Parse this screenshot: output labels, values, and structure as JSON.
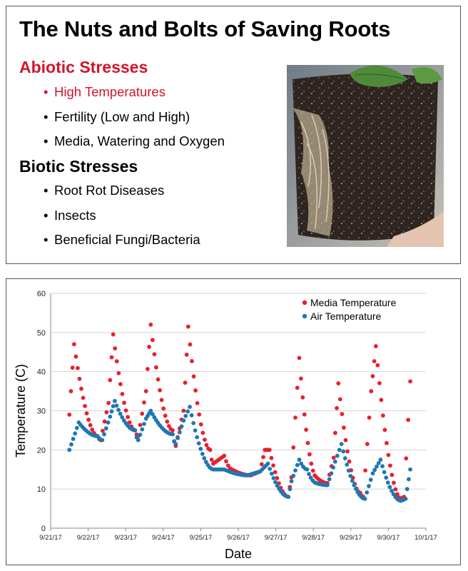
{
  "slide": {
    "title": "The Nuts and Bolts of Saving Roots",
    "abiotic_heading": "Abiotic Stresses",
    "abiotic_items": [
      "High Temperatures",
      "Fertility (Low and High)",
      "Media, Watering and Oxygen"
    ],
    "biotic_heading": "Biotic Stresses",
    "biotic_items": [
      "Root Rot Diseases",
      "Insects",
      "Beneficial Fungi/Bacteria"
    ],
    "photo": "root-ball-photo",
    "highlight_color": "#d2142c"
  },
  "chart_data": {
    "type": "scatter",
    "xlabel": "Date",
    "ylabel": "Temperature (C)",
    "ylim": [
      0,
      60
    ],
    "yticks": [
      0,
      10,
      20,
      30,
      40,
      50,
      60
    ],
    "xlim": [
      "9/21/17",
      "10/1/17"
    ],
    "xticks": [
      "9/21/17",
      "9/22/17",
      "9/23/17",
      "9/24/17",
      "9/25/17",
      "9/26/17",
      "9/27/17",
      "9/28/17",
      "9/29/17",
      "9/30/17",
      "10/1/17"
    ],
    "grid": "horizontal",
    "legend_position": "top-right",
    "series": [
      {
        "name": "Media Temperature",
        "color": "#e8202e",
        "keypoints": [
          [
            "9/21/17 12:00",
            29
          ],
          [
            "9/21/17 15:00",
            47
          ],
          [
            "9/22/17 06:00",
            23.5
          ],
          [
            "9/22/17 08:00",
            22.5
          ],
          [
            "9/22/17 13:00",
            32
          ],
          [
            "9/22/17 16:00",
            49.5
          ],
          [
            "9/23/17 06:00",
            25
          ],
          [
            "9/23/17 08:00",
            23.5
          ],
          [
            "9/23/17 13:00",
            35
          ],
          [
            "9/23/17 16:00",
            52
          ],
          [
            "9/24/17 06:00",
            25
          ],
          [
            "9/24/17 08:00",
            21
          ],
          [
            "9/24/17 13:00",
            30
          ],
          [
            "9/24/17 16:00",
            51.5
          ],
          [
            "9/25/17 06:00",
            20
          ],
          [
            "9/25/17 08:00",
            16.5
          ],
          [
            "9/25/17 15:00",
            18.5
          ],
          [
            "9/25/17 20:00",
            15
          ],
          [
            "9/26/17 08:00",
            13.5
          ],
          [
            "9/26/17 14:00",
            14.5
          ],
          [
            "9/26/17 17:00",
            20
          ],
          [
            "9/26/17 20:00",
            20
          ],
          [
            "9/27/17 08:00",
            8
          ],
          [
            "9/27/17 10:00",
            13
          ],
          [
            "9/27/17 15:00",
            43.5
          ],
          [
            "9/28/17 02:00",
            13
          ],
          [
            "9/28/17 09:00",
            11.5
          ],
          [
            "9/28/17 13:00",
            18
          ],
          [
            "9/28/17 16:00",
            37
          ],
          [
            "9/29/17 06:00",
            9
          ],
          [
            "9/29/17 08:00",
            8
          ],
          [
            "9/29/17 13:00",
            35
          ],
          [
            "9/29/17 16:00",
            46.5
          ],
          [
            "9/30/17 08:00",
            7.5
          ],
          [
            "9/30/17 10:00",
            8
          ],
          [
            "9/30/17 14:00",
            37.5
          ]
        ]
      },
      {
        "name": "Air Temperature",
        "color": "#1f77b4",
        "keypoints": [
          [
            "9/21/17 12:00",
            20
          ],
          [
            "9/21/17 18:00",
            27
          ],
          [
            "9/22/17 06:00",
            23.5
          ],
          [
            "9/22/17 09:00",
            22.5
          ],
          [
            "9/22/17 14:00",
            28.5
          ],
          [
            "9/22/17 17:00",
            32.5
          ],
          [
            "9/23/17 06:00",
            25
          ],
          [
            "9/23/17 08:00",
            22.5
          ],
          [
            "9/23/17 13:00",
            28
          ],
          [
            "9/23/17 16:00",
            30
          ],
          [
            "9/24/17 06:00",
            24
          ],
          [
            "9/24/17 08:00",
            21.5
          ],
          [
            "9/24/17 13:00",
            27.5
          ],
          [
            "9/24/17 17:00",
            31
          ],
          [
            "9/25/17 08:00",
            15
          ],
          [
            "9/25/17 15:00",
            15
          ],
          [
            "9/26/17 06:00",
            13.5
          ],
          [
            "9/26/17 14:00",
            14.5
          ],
          [
            "9/26/17 19:00",
            16.5
          ],
          [
            "9/27/17 08:00",
            8
          ],
          [
            "9/27/17 10:00",
            12
          ],
          [
            "9/27/17 15:00",
            17.5
          ],
          [
            "9/27/17 20:00",
            15
          ],
          [
            "9/28/17 02:00",
            11.5
          ],
          [
            "9/28/17 09:00",
            11
          ],
          [
            "9/28/17 14:00",
            17
          ],
          [
            "9/28/17 18:00",
            21.5
          ],
          [
            "9/29/17 09:00",
            7.5
          ],
          [
            "9/29/17 14:00",
            14
          ],
          [
            "9/29/17 19:00",
            17.5
          ],
          [
            "9/30/17 08:00",
            7
          ],
          [
            "9/30/17 11:00",
            7.5
          ],
          [
            "9/30/17 14:00",
            15
          ]
        ]
      }
    ]
  }
}
